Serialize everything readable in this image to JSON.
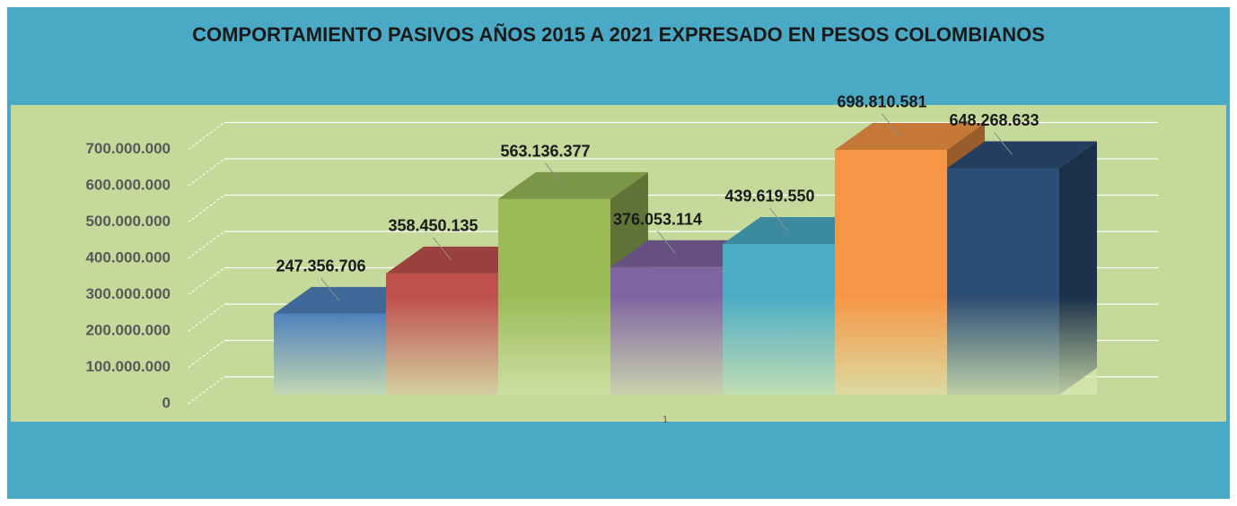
{
  "chart_data": {
    "type": "bar3d",
    "title": "COMPORTAMIENTO PASIVOS AÑOS 2015 A 2021 EXPRESADO EN PESOS COLOMBIANOS",
    "categories": [
      "1"
    ],
    "series": [
      {
        "color": "#4f81bd",
        "values": [
          247356706
        ],
        "value_labels": [
          "247.356.706"
        ]
      },
      {
        "color": "#c0504d",
        "values": [
          358450135
        ],
        "value_labels": [
          "358.450.135"
        ]
      },
      {
        "color": "#9bbb59",
        "values": [
          563136377
        ],
        "value_labels": [
          "563.136.377"
        ]
      },
      {
        "color": "#8064a2",
        "values": [
          376053114
        ],
        "value_labels": [
          "376.053.114"
        ]
      },
      {
        "color": "#4bacc6",
        "values": [
          439619550
        ],
        "value_labels": [
          "439.619.550"
        ]
      },
      {
        "color": "#f79646",
        "values": [
          698810581
        ],
        "value_labels": [
          "698.810.581"
        ]
      },
      {
        "color": "#2c4d75",
        "values": [
          648268633
        ],
        "value_labels": [
          "648.268.633"
        ]
      }
    ],
    "ylim": [
      0,
      800000000
    ],
    "yticks": [
      0,
      {
        "value": 100000000,
        "label": "100.000.000"
      },
      {
        "value": 200000000,
        "label": "200.000.000"
      },
      {
        "value": 300000000,
        "label": "300.000.000"
      },
      {
        "value": 400000000,
        "label": "400.000.000"
      },
      {
        "value": 500000000,
        "label": "500.000.000"
      },
      {
        "value": 600000000,
        "label": "600.000.000"
      },
      {
        "value": 700000000,
        "label": "700.000.000"
      }
    ],
    "grid": true
  }
}
